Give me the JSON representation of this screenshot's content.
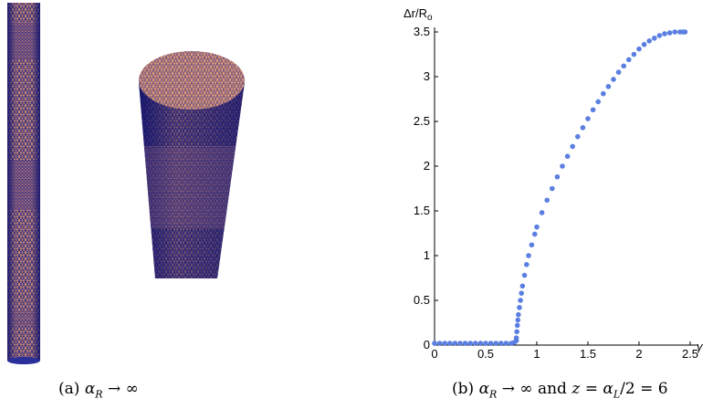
{
  "figure_a": {
    "caption_tag": "(a)",
    "caption_math": "α",
    "caption_sub": "R",
    "caption_rest": " → ∞",
    "mesh_face_color": "#d9936f",
    "mesh_edge_color": "#1c1f8c"
  },
  "figure_b": {
    "caption_tag": "(b)",
    "caption_parts": [
      "α",
      "R",
      " → ∞ and ",
      "z",
      " = ",
      "α",
      "L",
      "/2 = 6"
    ]
  },
  "chart_data": {
    "type": "scatter",
    "ylabel": "Δr/R",
    "ylabel_sub": "o",
    "xlabel": "γ",
    "xlim": [
      0,
      2.5
    ],
    "ylim": [
      0,
      3.5
    ],
    "xticks": [
      "0",
      "0.5",
      "1",
      "1.5",
      "2",
      "2.5"
    ],
    "yticks": [
      "0",
      "0.5",
      "1",
      "1.5",
      "2",
      "2.5",
      "3",
      "3.5"
    ],
    "marker_color": "#5b7fe0",
    "series": [
      {
        "x": [
          0.0,
          0.05,
          0.1,
          0.15,
          0.2,
          0.25,
          0.3,
          0.35,
          0.4,
          0.45,
          0.5,
          0.55,
          0.6,
          0.65,
          0.7,
          0.75,
          0.78,
          0.8,
          0.8,
          0.805,
          0.81,
          0.815,
          0.82,
          0.83,
          0.84,
          0.85,
          0.86,
          0.88,
          0.9,
          0.92,
          0.95,
          0.98,
          1.0,
          1.05,
          1.1,
          1.15,
          1.2,
          1.25,
          1.3,
          1.35,
          1.4,
          1.45,
          1.5,
          1.55,
          1.6,
          1.65,
          1.7,
          1.75,
          1.8,
          1.85,
          1.9,
          1.95,
          2.0,
          2.05,
          2.1,
          2.15,
          2.2,
          2.25,
          2.3,
          2.35,
          2.4,
          2.43,
          2.45
        ],
        "y": [
          0.02,
          0.02,
          0.02,
          0.02,
          0.02,
          0.02,
          0.02,
          0.02,
          0.02,
          0.02,
          0.02,
          0.02,
          0.02,
          0.02,
          0.02,
          0.02,
          0.03,
          0.05,
          0.08,
          0.15,
          0.22,
          0.28,
          0.34,
          0.42,
          0.5,
          0.58,
          0.66,
          0.78,
          0.9,
          1.0,
          1.12,
          1.24,
          1.32,
          1.48,
          1.62,
          1.75,
          1.88,
          2.0,
          2.11,
          2.22,
          2.33,
          2.43,
          2.53,
          2.63,
          2.72,
          2.81,
          2.89,
          2.97,
          3.05,
          3.12,
          3.19,
          3.25,
          3.31,
          3.36,
          3.4,
          3.43,
          3.46,
          3.48,
          3.49,
          3.5,
          3.5,
          3.5,
          3.5
        ]
      }
    ]
  }
}
